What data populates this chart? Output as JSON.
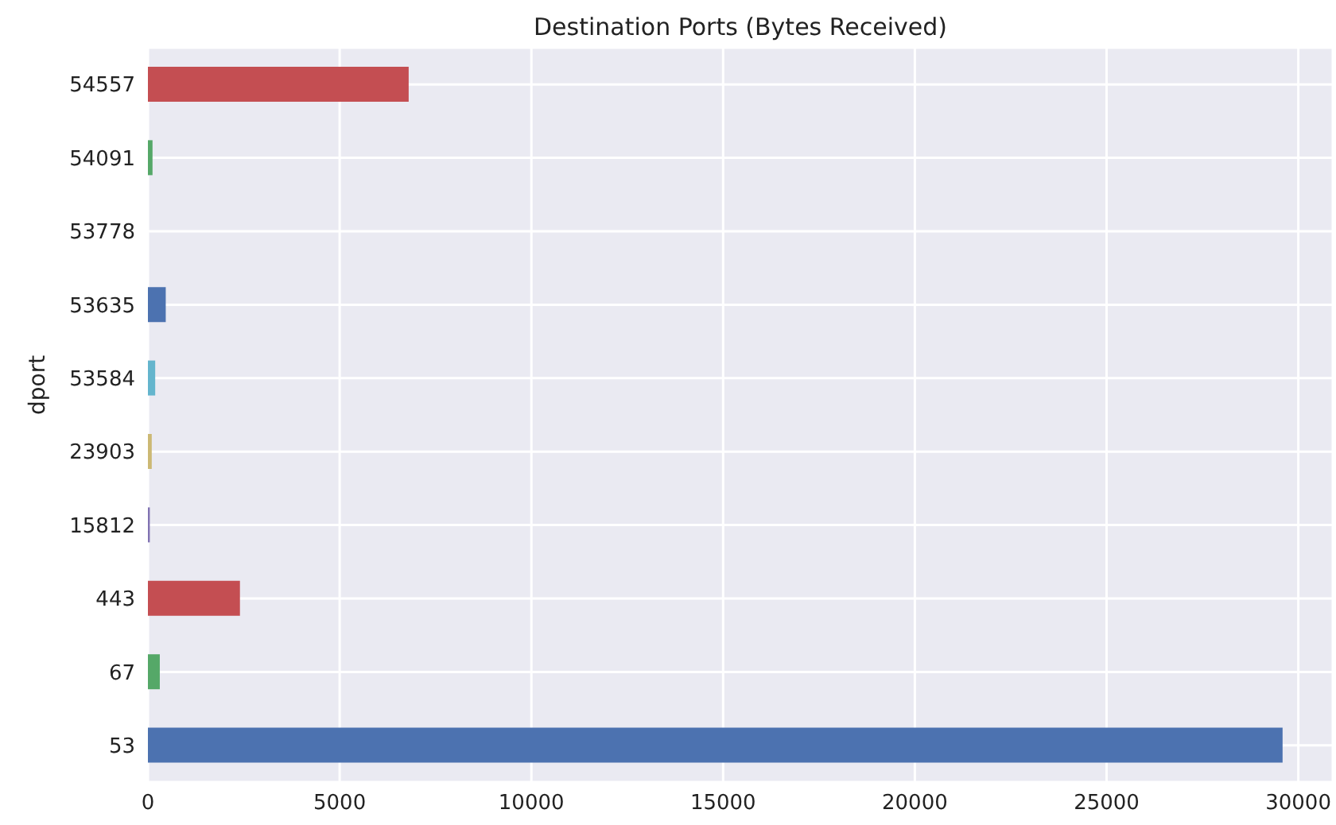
{
  "chart_data": {
    "type": "bar",
    "orientation": "horizontal",
    "title": "Destination Ports (Bytes Received)",
    "ylabel": "dport",
    "categories": [
      "54557",
      "54091",
      "53778",
      "53635",
      "53584",
      "23903",
      "15812",
      "443",
      "67",
      "53"
    ],
    "values": [
      6800,
      120,
      0,
      465,
      190,
      100,
      50,
      2400,
      310,
      29590
    ],
    "colors": [
      "#c44e52",
      "#55a868",
      "#55a868",
      "#4c72b0",
      "#64b5cd",
      "#ccb974",
      "#8172b2",
      "#c44e52",
      "#55a868",
      "#4c72b0"
    ],
    "xlim": [
      0,
      30900
    ],
    "xticks": [
      0,
      5000,
      10000,
      15000,
      20000,
      25000,
      30000
    ],
    "grid": true
  }
}
